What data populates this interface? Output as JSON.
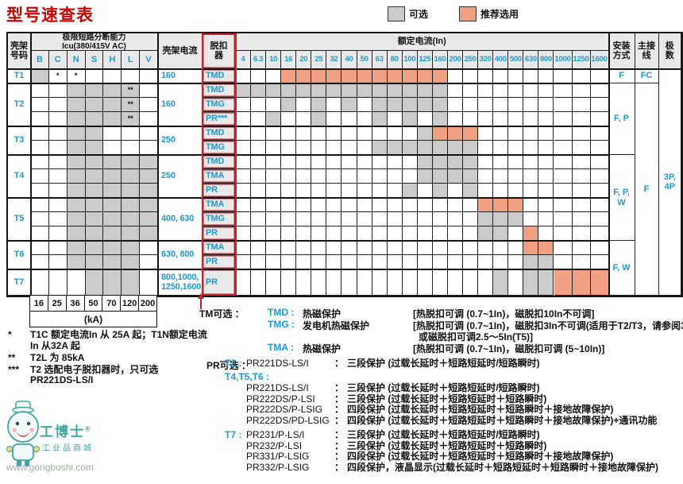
{
  "title": "型号速查表",
  "legend": {
    "optional_label": "可选",
    "recommended_label": "推荐选用"
  },
  "colors": {
    "optional_gray": "#cbcbcb",
    "recommended_orange": "#f0a183",
    "accent_blue": "#1b9cd8",
    "accent_red": "#c0262c",
    "title_red": "#cc0000",
    "header_bg": "#e9e9e9"
  },
  "table": {
    "headers": {
      "frame": "壳架\n号码",
      "icu": "极限短路分断能力\nIcu(380/415V AC)",
      "icu_cols": [
        "B",
        "C",
        "N",
        "S",
        "H",
        "L",
        "V"
      ],
      "frame_current": "壳架电流",
      "trip": "脱扣\n器",
      "rated_current": "额定电流(In)",
      "current_cols": [
        "4",
        "6.3",
        "10",
        "16",
        "20",
        "25",
        "32",
        "40",
        "50",
        "63",
        "80",
        "100",
        "125",
        "160",
        "200",
        "250",
        "320",
        "400",
        "500",
        "630",
        "800",
        "1000",
        "1250",
        "1600"
      ],
      "install": "安装\n方式",
      "wiring": "主接\n线",
      "poles": "极\n数"
    },
    "groups": [
      {
        "frame": "T1",
        "frame_current": "160",
        "icu_gray": [
          "B"
        ],
        "icu_marks": {
          "C": "*",
          "N": "*"
        },
        "rows": [
          {
            "trip": "TMD",
            "gray": [],
            "orange": [
              "16",
              "20",
              "25",
              "32",
              "40",
              "50",
              "63",
              "80",
              "100",
              "125",
              "160"
            ]
          }
        ]
      },
      {
        "frame": "T2",
        "frame_current": "160",
        "icu_gray": [
          "N",
          "S",
          "H",
          "L"
        ],
        "icu_marks": {
          "L": "**"
        },
        "rows": [
          {
            "trip": "TMD",
            "gray": [
              "4",
              "6.3",
              "10",
              "16",
              "20",
              "25",
              "32",
              "40",
              "50",
              "63",
              "80",
              "100",
              "125",
              "160"
            ],
            "orange": []
          },
          {
            "trip": "TMG",
            "gray": [
              "16",
              "25",
              "40",
              "63",
              "80",
              "100",
              "125",
              "160"
            ],
            "orange": []
          },
          {
            "trip": "PR***",
            "gray": [
              "10",
              "25",
              "63",
              "100",
              "160"
            ],
            "orange": []
          }
        ]
      },
      {
        "frame": "T3",
        "frame_current": "250",
        "icu_gray": [
          "N",
          "S"
        ],
        "icu_marks": {},
        "rows": [
          {
            "trip": "TMD",
            "gray": [
              "125"
            ],
            "orange": [
              "160",
              "200",
              "250"
            ]
          },
          {
            "trip": "TMG",
            "gray": [
              "63",
              "80",
              "100",
              "125",
              "160",
              "200",
              "250"
            ],
            "orange": []
          }
        ]
      },
      {
        "frame": "T4",
        "frame_current": "250",
        "icu_gray": [
          "N",
          "S",
          "H",
          "L",
          "V"
        ],
        "icu_marks": {},
        "rows": [
          {
            "trip": "TMD",
            "gray": [
              "125",
              "160",
              "200",
              "250"
            ],
            "orange": []
          },
          {
            "trip": "TMA",
            "gray": [
              "125",
              "160",
              "200",
              "250"
            ],
            "orange": []
          },
          {
            "trip": "PR",
            "gray": [
              "100",
              "160",
              "250"
            ],
            "orange": []
          }
        ]
      },
      {
        "frame": "T5",
        "frame_current": "400, 630",
        "icu_gray": [
          "N",
          "S",
          "H",
          "L",
          "V"
        ],
        "icu_marks": {},
        "rows": [
          {
            "trip": "TMA",
            "gray": [],
            "orange": [
              "320",
              "400",
              "500"
            ]
          },
          {
            "trip": "TMG",
            "gray": [
              "320",
              "400",
              "500"
            ],
            "orange": []
          },
          {
            "trip": "PR",
            "gray": [
              "320",
              "400"
            ],
            "orange": [
              "630"
            ]
          }
        ]
      },
      {
        "frame": "T6",
        "frame_current": "630, 800",
        "icu_gray": [
          "N",
          "S",
          "H",
          "L"
        ],
        "icu_marks": {},
        "rows": [
          {
            "trip": "TMA",
            "gray": [],
            "orange": [
              "630",
              "800"
            ]
          },
          {
            "trip": "PR",
            "gray": [
              "630",
              "800"
            ],
            "orange": []
          }
        ]
      },
      {
        "frame": "T7",
        "frame_current": "800,1000,\n1250,1600",
        "icu_gray": [
          "S",
          "H",
          "L"
        ],
        "icu_marks": {},
        "rows": [
          {
            "trip": "PR",
            "gray": [
              "400",
              "630",
              "800"
            ],
            "orange": [
              "1000",
              "1250",
              "1600"
            ]
          }
        ]
      }
    ],
    "install_spans": [
      {
        "frames": [
          "T1"
        ],
        "label": "F"
      },
      {
        "frames": [
          "T2",
          "T3"
        ],
        "label": "F, P"
      },
      {
        "frames": [
          "T4",
          "T5"
        ],
        "label": "F, P,\nW"
      },
      {
        "frames": [
          "T6",
          "T7"
        ],
        "label": "F, W"
      }
    ],
    "wiring_spans": [
      {
        "frames": [
          "T1"
        ],
        "label": "FC"
      },
      {
        "frames": [
          "T2",
          "T3",
          "T4",
          "T5",
          "T6",
          "T7"
        ],
        "label": "F"
      }
    ],
    "poles_span": {
      "label": "3P,\n4P"
    }
  },
  "ka_scale": {
    "values": [
      "16",
      "25",
      "36",
      "50",
      "70",
      "120",
      "200"
    ],
    "unit": "(kA)"
  },
  "footnotes": [
    {
      "mark": "*",
      "line1": "T1C 额定电流In 从 25A 起；T1N额定电流",
      "line2": "In 从32A 起"
    },
    {
      "mark": "**",
      "line1": "T2L 为 85kA",
      "line2": ""
    },
    {
      "mark": "***",
      "line1": "T2 选配电子脱扣器时，只可选",
      "line2": "PR221DS-LS/I"
    }
  ],
  "tm": {
    "label": "TM可选 ：",
    "items": [
      {
        "key": "TMD :",
        "name": "热磁保护",
        "desc": "[热脱扣可调 (0.7~1In)，磁脱扣10In不可调]"
      },
      {
        "key": "TMG :",
        "name": "发电机热磁保护",
        "desc": "[热脱扣可调 (0.7~1In)，磁脱扣3In不可调(适用于T2/T3，请参阅3/5页)"
      },
      {
        "key": "",
        "name": "",
        "desc": "或磁脱扣可调2.5～5In(T5)]"
      },
      {
        "key": "TMA :",
        "name": "热磁保护",
        "desc": "[热脱扣可调 (0.7~1In)，磁脱扣可调 (5~10In)]"
      }
    ]
  },
  "pr": {
    "label": "PR可选 ：",
    "rows": [
      {
        "key": "T2 :",
        "name": "PR221DS-LS/I",
        "colon": "：",
        "desc": "三段保护 (过载长延时＋短路短延时/短路瞬时)"
      },
      {
        "key": "T4,T5,T6 :",
        "name": "",
        "colon": "",
        "desc": ""
      },
      {
        "key": "",
        "name": "PR221DS-LS/I",
        "colon": "：",
        "desc": "三段保护 (过载长延时＋短路短延时/短路瞬时)"
      },
      {
        "key": "",
        "name": "PR222DS/P-LSI",
        "colon": "：",
        "desc": "三段保护 (过载长延时＋短路短延时＋短路瞬时)"
      },
      {
        "key": "",
        "name": "PR222DS/P-LSIG",
        "colon": "：",
        "desc": "四段保护 (过载长延时＋短路短延时＋短路瞬时＋接地故障保护)"
      },
      {
        "key": "",
        "name": "PR222DS/PD-LSIG",
        "colon": "：",
        "desc": "四段保护 (过载长延时＋短路短延时＋短路瞬时＋接地故障保护)+通讯功能"
      },
      {
        "key": "T7 :",
        "name": "PR231/P-LS/I",
        "colon": "：",
        "desc": "三段保护 (过载长延时＋短路短延时/短路瞬时)"
      },
      {
        "key": "",
        "name": "PR232/P-LSI",
        "colon": "：",
        "desc": "三段保护 (过载长延时＋短路短延时＋短路瞬时)"
      },
      {
        "key": "",
        "name": "PR331/P-LSIG",
        "colon": "：",
        "desc": "四段保护 (过载长延时＋短路短延时＋短路瞬时＋接地故障保护)"
      },
      {
        "key": "",
        "name": "PR332/P-LSIG",
        "colon": "：",
        "desc": "四段保护，液晶显示(过载长延时＋短路短延时＋短路瞬时＋接地故障保护)"
      }
    ]
  },
  "watermark": {
    "brand": "工博士",
    "reg": "®",
    "tagline": "工业品商城",
    "url": "www.gongboshi.com"
  }
}
